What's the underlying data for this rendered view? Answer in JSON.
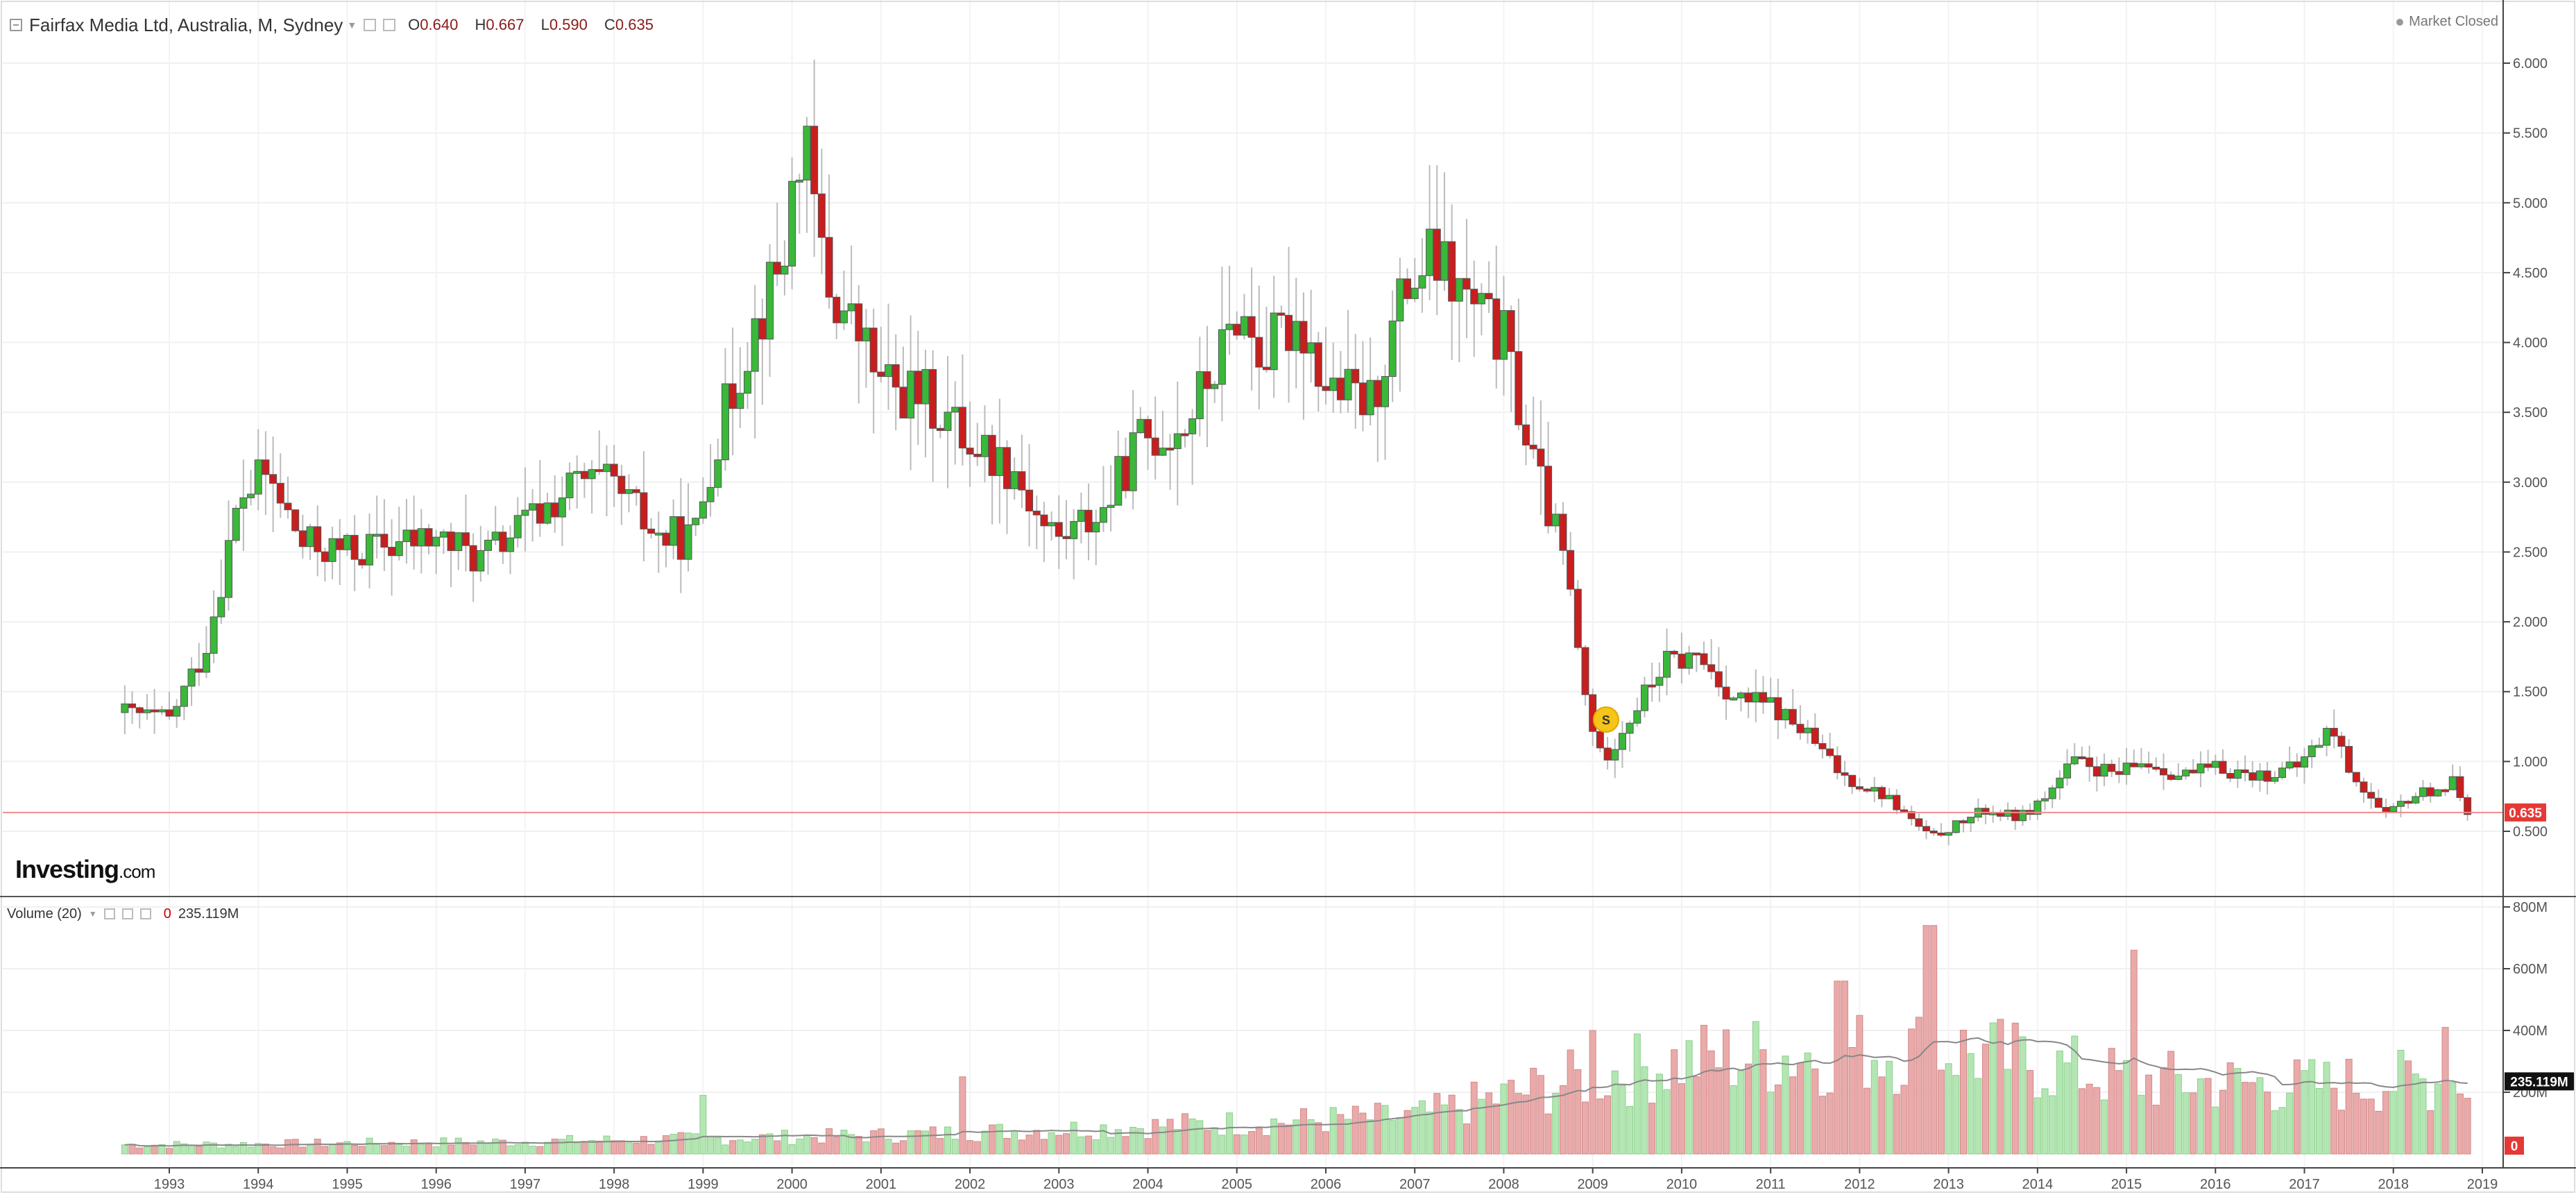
{
  "header": {
    "symbol_title": "Fairfax Media Ltd, Australia, M, Sydney",
    "open_key": "O",
    "open_val": "0.640",
    "high_key": "H",
    "high_val": "0.667",
    "low_key": "L",
    "low_val": "0.590",
    "close_key": "C",
    "close_val": "0.635",
    "market_status": "Market Closed"
  },
  "volume_legend": {
    "label": "Volume (20)",
    "current_zero": "0",
    "current_value": "235.119M"
  },
  "logo": {
    "main": "Investing",
    "suffix": ".com"
  },
  "marker": {
    "label": "S"
  },
  "colors": {
    "up": "#3ab83a",
    "down": "#c81e1e",
    "vol_up": "#b4e6b4",
    "vol_down": "#eaaaaa",
    "price_line": "#f28b8b",
    "price_badge": "#e53935"
  },
  "chart_data": [
    {
      "type": "candlestick",
      "title": "Fairfax Media Ltd, Australia, M, Sydney",
      "x_axis_labels": [
        "1993",
        "1994",
        "1995",
        "1996",
        "1997",
        "1998",
        "1999",
        "2000",
        "2001",
        "2002",
        "2003",
        "2004",
        "2005",
        "2006",
        "2007",
        "2008",
        "2009",
        "2010",
        "2011",
        "2012",
        "2013",
        "2014",
        "2015",
        "2016",
        "2017",
        "2018",
        "2019"
      ],
      "y_ticks": [
        "6.000",
        "5.500",
        "5.000",
        "4.500",
        "4.000",
        "3.500",
        "3.000",
        "2.500",
        "2.000",
        "1.500",
        "1.000",
        "0.500"
      ],
      "ylim": [
        0.1,
        6.3
      ],
      "last_price": "0.635",
      "yearly_path": [
        {
          "year": 1992.5,
          "value": 1.35
        },
        {
          "year": 1993.0,
          "value": 1.3
        },
        {
          "year": 1993.4,
          "value": 1.8
        },
        {
          "year": 1993.8,
          "value": 2.9
        },
        {
          "year": 1994.1,
          "value": 3.05
        },
        {
          "year": 1994.5,
          "value": 2.55
        },
        {
          "year": 1995.0,
          "value": 2.5
        },
        {
          "year": 1995.5,
          "value": 2.55
        },
        {
          "year": 1996.0,
          "value": 2.6
        },
        {
          "year": 1996.5,
          "value": 2.45
        },
        {
          "year": 1997.0,
          "value": 2.7
        },
        {
          "year": 1997.6,
          "value": 3.0
        },
        {
          "year": 1998.0,
          "value": 2.95
        },
        {
          "year": 1998.5,
          "value": 2.6
        },
        {
          "year": 1998.9,
          "value": 2.6
        },
        {
          "year": 1999.1,
          "value": 3.2
        },
        {
          "year": 1999.5,
          "value": 4.0
        },
        {
          "year": 1999.9,
          "value": 4.6
        },
        {
          "year": 2000.1,
          "value": 5.5
        },
        {
          "year": 2000.4,
          "value": 4.4
        },
        {
          "year": 2000.8,
          "value": 4.0
        },
        {
          "year": 2001.0,
          "value": 3.7
        },
        {
          "year": 2001.5,
          "value": 3.6
        },
        {
          "year": 2002.0,
          "value": 3.3
        },
        {
          "year": 2002.5,
          "value": 3.1
        },
        {
          "year": 2002.8,
          "value": 2.7
        },
        {
          "year": 2003.0,
          "value": 2.6
        },
        {
          "year": 2003.5,
          "value": 2.8
        },
        {
          "year": 2003.9,
          "value": 3.3
        },
        {
          "year": 2004.4,
          "value": 3.4
        },
        {
          "year": 2004.9,
          "value": 4.0
        },
        {
          "year": 2005.0,
          "value": 4.25
        },
        {
          "year": 2005.3,
          "value": 3.9
        },
        {
          "year": 2005.7,
          "value": 4.2
        },
        {
          "year": 2006.0,
          "value": 3.7
        },
        {
          "year": 2006.5,
          "value": 3.55
        },
        {
          "year": 2006.9,
          "value": 4.4
        },
        {
          "year": 2007.2,
          "value": 4.6
        },
        {
          "year": 2007.5,
          "value": 4.35
        },
        {
          "year": 2008.0,
          "value": 4.0
        },
        {
          "year": 2008.3,
          "value": 3.2
        },
        {
          "year": 2008.7,
          "value": 2.4
        },
        {
          "year": 2008.9,
          "value": 1.5
        },
        {
          "year": 2009.1,
          "value": 1.0
        },
        {
          "year": 2009.4,
          "value": 1.3
        },
        {
          "year": 2009.8,
          "value": 1.7
        },
        {
          "year": 2010.2,
          "value": 1.75
        },
        {
          "year": 2010.6,
          "value": 1.45
        },
        {
          "year": 2011.0,
          "value": 1.4
        },
        {
          "year": 2011.4,
          "value": 1.2
        },
        {
          "year": 2011.8,
          "value": 0.9
        },
        {
          "year": 2012.3,
          "value": 0.75
        },
        {
          "year": 2012.8,
          "value": 0.45
        },
        {
          "year": 2013.1,
          "value": 0.55
        },
        {
          "year": 2013.4,
          "value": 0.65
        },
        {
          "year": 2013.8,
          "value": 0.6
        },
        {
          "year": 2014.1,
          "value": 0.75
        },
        {
          "year": 2014.4,
          "value": 1.0
        },
        {
          "year": 2014.9,
          "value": 0.9
        },
        {
          "year": 2015.2,
          "value": 1.0
        },
        {
          "year": 2015.6,
          "value": 0.9
        },
        {
          "year": 2016.0,
          "value": 0.95
        },
        {
          "year": 2016.5,
          "value": 0.9
        },
        {
          "year": 2016.9,
          "value": 0.95
        },
        {
          "year": 2017.3,
          "value": 1.25
        },
        {
          "year": 2017.5,
          "value": 0.95
        },
        {
          "year": 2017.9,
          "value": 0.6
        },
        {
          "year": 2018.2,
          "value": 0.75
        },
        {
          "year": 2018.7,
          "value": 0.85
        },
        {
          "year": 2018.85,
          "value": 0.635
        }
      ]
    },
    {
      "type": "bar",
      "title": "Volume (20)",
      "y_ticks": [
        "800M",
        "600M",
        "400M",
        "200M"
      ],
      "ylim": [
        0,
        800
      ],
      "unit": "M",
      "last_value": "235.119M",
      "zero_label": "0",
      "yearly_volume": [
        {
          "year": 1993,
          "value": 30
        },
        {
          "year": 1995,
          "value": 35
        },
        {
          "year": 1997,
          "value": 40
        },
        {
          "year": 1999,
          "value": 50
        },
        {
          "year": 2001,
          "value": 60
        },
        {
          "year": 2003,
          "value": 80
        },
        {
          "year": 2005,
          "value": 100
        },
        {
          "year": 2007,
          "value": 120
        },
        {
          "year": 2009,
          "value": 250
        },
        {
          "year": 2010,
          "value": 300
        },
        {
          "year": 2011,
          "value": 320
        },
        {
          "year": 2012,
          "value": 330
        },
        {
          "year": 2013,
          "value": 340
        },
        {
          "year": 2014,
          "value": 290
        },
        {
          "year": 2015,
          "value": 240
        },
        {
          "year": 2016,
          "value": 230
        },
        {
          "year": 2017,
          "value": 220
        },
        {
          "year": 2018,
          "value": 235
        }
      ],
      "spikes": [
        {
          "year": 1999.0,
          "value": 190
        },
        {
          "year": 2001.9,
          "value": 250
        },
        {
          "year": 2009.0,
          "value": 400
        },
        {
          "year": 2011.8,
          "value": 560
        },
        {
          "year": 2012.8,
          "value": 740
        },
        {
          "year": 2015.1,
          "value": 660
        },
        {
          "year": 2018.6,
          "value": 410
        }
      ]
    }
  ]
}
